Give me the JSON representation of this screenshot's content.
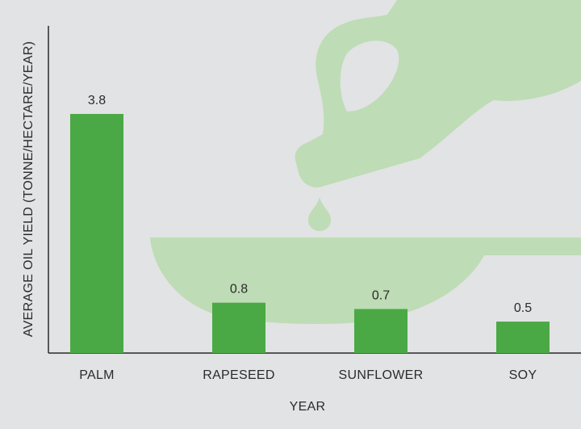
{
  "colors": {
    "background": "#e2e3e4",
    "bar": "#4aa944",
    "illustration": "#bedcb5",
    "axis": "#2b2b2b",
    "text": "#2b2b2b"
  },
  "illustration": {
    "icons": [
      "oil-bottle-icon",
      "oil-drop-icon",
      "pan-icon"
    ]
  },
  "chart_data": {
    "type": "bar",
    "categories": [
      "PALM",
      "RAPESEED",
      "SUNFLOWER",
      "SOY"
    ],
    "values": [
      3.8,
      0.8,
      0.7,
      0.5
    ],
    "data_labels": [
      "3.8",
      "0.8",
      "0.7",
      "0.5"
    ],
    "title": "",
    "xlabel": "YEAR",
    "ylabel": "AVERAGE OIL YIELD (TONNE/HECTARE/YEAR)",
    "ylim": [
      0,
      5.2
    ],
    "grid": false,
    "legend": "none"
  }
}
